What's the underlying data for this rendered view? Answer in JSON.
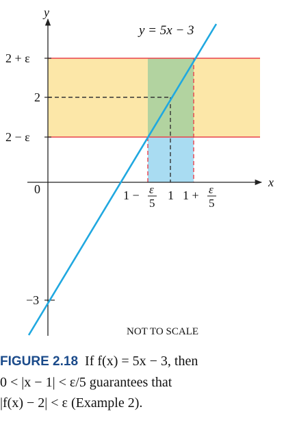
{
  "diagram": {
    "axis_x_label": "x",
    "axis_y_label": "y",
    "function_label": "y = 5x − 3",
    "y_tick_upper": "2 + ε",
    "y_tick_mid": "2",
    "y_tick_lower": "2 − ε",
    "y_tick_origin": "0",
    "y_intercept_label": "−3",
    "x_tick_left_prefix": "1 −",
    "x_tick_center": "1",
    "x_tick_right_prefix": "1 +",
    "frac_numerator": "ε",
    "frac_denominator": "5",
    "note": "NOT TO SCALE",
    "colors": {
      "band": "#fce7a8",
      "green_region": "#b2d3a0",
      "blue_region": "#a9dcf2",
      "line": "#20a8e0",
      "red_line": "#e8404a",
      "dash": "#333333",
      "axis": "#222222"
    }
  },
  "caption": {
    "figure_number": "FIGURE 2.18",
    "line1": "If f(x) = 5x − 3, then",
    "line2": "0 < |x − 1| < ε/5 guarantees that",
    "line3": "|f(x) − 2| < ε (Example 2)."
  }
}
